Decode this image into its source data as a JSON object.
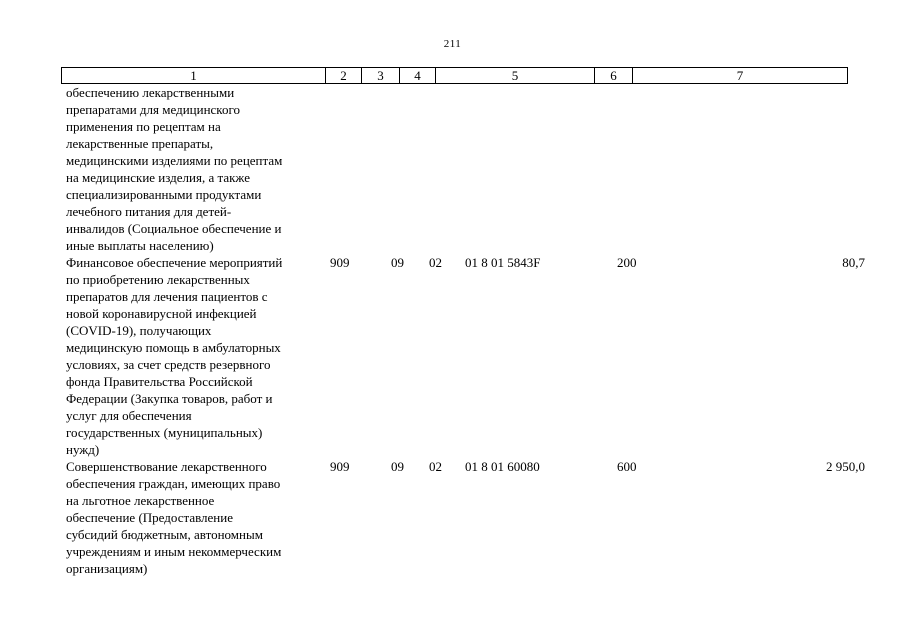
{
  "page_number": "211",
  "header": {
    "columns": [
      "1",
      "2",
      "3",
      "4",
      "5",
      "6",
      "7"
    ]
  },
  "rows": [
    {
      "name": "обеспечению лекарственными\nпрепаратами для медицинского\nприменения по рецептам на\nлекарственные препараты,\nмедицинскими изделиями по рецептам\nна медицинские изделия, а также\nспециализированными продуктами\nлечебного питания для детей-\nинвалидов (Социальное обеспечение и\nиные выплаты населению)",
      "ved": "",
      "rz": "",
      "pr": "",
      "csr": "",
      "vr": "",
      "sum": ""
    },
    {
      "name": "Финансовое обеспечение мероприятий\nпо приобретению лекарственных\nпрепаратов для лечения пациентов с\nновой коронавирусной инфекцией\n(COVID-19), получающих\nмедицинскую помощь в амбулаторных\nусловиях, за счет средств резервного\nфонда Правительства Российской\nФедерации (Закупка товаров, работ и\nуслуг для обеспечения\nгосударственных (муниципальных)\nнужд)",
      "ved": "909",
      "rz": "09",
      "pr": "02",
      "csr": "01 8 01 5843F",
      "vr": "200",
      "sum": "80,7"
    },
    {
      "name": "Совершенствование лекарственного\nобеспечения граждан, имеющих право\nна льготное лекарственное\nобеспечение (Предоставление\nсубсидий бюджетным, автономным\nучреждениям и иным некоммерческим\nорганизациям)",
      "ved": "909",
      "rz": "09",
      "pr": "02",
      "csr": "01 8 01 60080",
      "vr": "600",
      "sum": "2 950,0"
    }
  ]
}
